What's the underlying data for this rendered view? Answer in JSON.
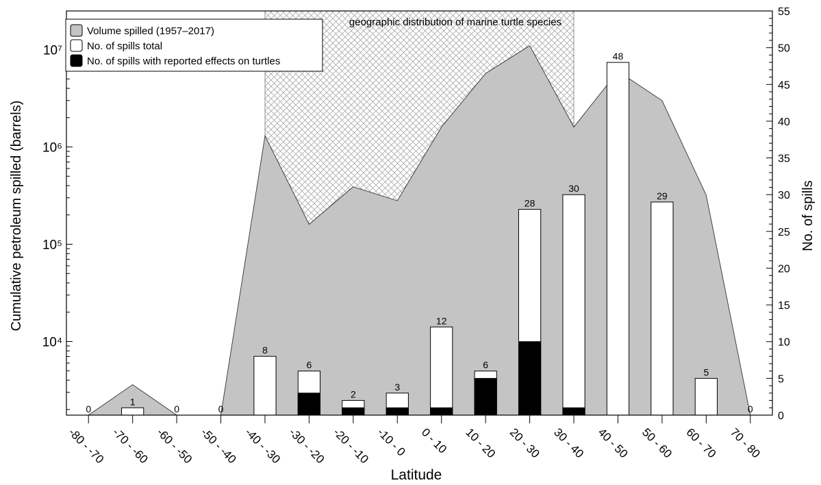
{
  "chart_data": {
    "type": "bar",
    "xlabel": "Latitude",
    "ylabel_left": "Cumulative petroleum spilled (barrels)",
    "ylabel_right": "No. of spills",
    "categories": [
      "-80 - -70",
      "-70 - -60",
      "-60 - -50",
      "-50 - -40",
      "-40 - -30",
      "-30 - -20",
      "-20 - -10",
      "-10 - 0",
      "0 - 10",
      "10 - 20",
      "20 - 30",
      "30 - 40",
      "40 - 50",
      "50 - 60",
      "60 - 70",
      "70 - 80"
    ],
    "left_axis": {
      "scale": "log",
      "ylim": [
        1750,
        25000000
      ],
      "tick_labels": [
        "10⁴",
        "10⁵",
        "10⁶",
        "10⁷"
      ]
    },
    "right_axis": {
      "ylim": [
        0,
        55
      ],
      "major_step": 5,
      "minor_step": 1
    },
    "legend_position": "top-left",
    "annotation": "geographic distribution of marine turtle species",
    "turtle_range_categories": [
      "-40 - -30",
      "30 - 40"
    ],
    "colors": {
      "volume_fill": "#c4c4c4",
      "total_fill": "#ffffff",
      "effects_fill": "#000000",
      "hatch": "#aaaaaa"
    },
    "series": [
      {
        "name": "Volume spilled (1957–2017)",
        "kind": "area",
        "axis": "left",
        "values": [
          0,
          3600,
          0,
          0,
          1300000,
          160000,
          390000,
          280000,
          1600000,
          5700000,
          11000000,
          1600000,
          6000000,
          3000000,
          320000,
          0
        ]
      },
      {
        "name": "No. of spills total",
        "kind": "bar",
        "axis": "right",
        "values": [
          0,
          1,
          0,
          0,
          8,
          6,
          2,
          3,
          12,
          6,
          28,
          30,
          48,
          29,
          5,
          0
        ]
      },
      {
        "name": "No. of spills with reported effects on turtles",
        "kind": "bar",
        "axis": "right",
        "values": [
          0,
          0,
          0,
          0,
          0,
          3,
          1,
          1,
          1,
          5,
          10,
          1,
          0,
          0,
          0,
          0
        ]
      }
    ]
  }
}
